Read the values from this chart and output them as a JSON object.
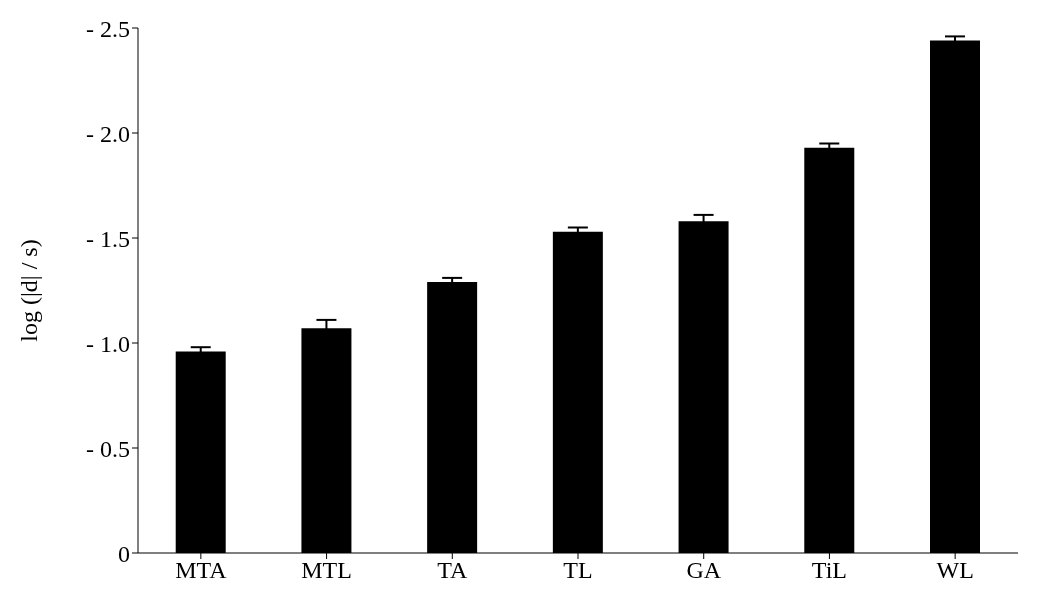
{
  "chart_data": {
    "type": "bar",
    "ylabel": "log (|d| / s)",
    "categories": [
      "MTA",
      "MTL",
      "TA",
      "TL",
      "GA",
      "TiL",
      "WL"
    ],
    "values": [
      -0.96,
      -1.07,
      -1.29,
      -1.53,
      -1.58,
      -1.93,
      -2.44
    ],
    "errors": [
      0.02,
      0.04,
      0.02,
      0.02,
      0.03,
      0.02,
      0.02
    ],
    "color": "#000000",
    "ylim": [
      0,
      -2.5
    ],
    "yticks": [
      0,
      {
        "value": -0.5,
        "label": "- 0.5"
      },
      {
        "value": -1.0,
        "label": "- 1.0"
      },
      {
        "value": -1.5,
        "label": "- 1.5"
      },
      {
        "value": -2.0,
        "label": "- 2.0"
      },
      {
        "value": -2.5,
        "label": "- 2.5"
      }
    ],
    "grid": false
  }
}
